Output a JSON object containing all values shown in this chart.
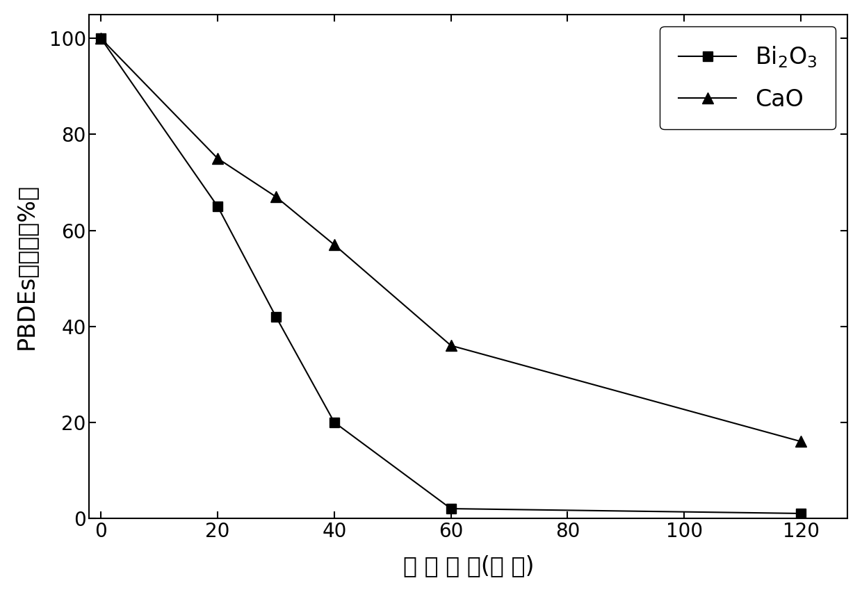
{
  "bi2o3_x": [
    0,
    20,
    30,
    40,
    60,
    120
  ],
  "bi2o3_y": [
    100,
    65,
    42,
    20,
    2,
    1
  ],
  "cao_x": [
    0,
    20,
    30,
    40,
    60,
    120
  ],
  "cao_y": [
    100,
    75,
    67,
    57,
    36,
    16
  ],
  "xlabel": "球 磨 时 间(分 钓)",
  "ylabel": "PBDEs剩余率（%）",
  "xlim": [
    -2,
    128
  ],
  "ylim": [
    0,
    105
  ],
  "xticks": [
    0,
    20,
    40,
    60,
    80,
    100,
    120
  ],
  "yticks": [
    0,
    20,
    40,
    60,
    80,
    100
  ],
  "line_color": "#000000",
  "marker_color": "#000000",
  "legend_bi2o3": "Bi$_2$O$_3$",
  "legend_cao": "CaO",
  "figsize": [
    12.4,
    8.52
  ],
  "dpi": 100
}
